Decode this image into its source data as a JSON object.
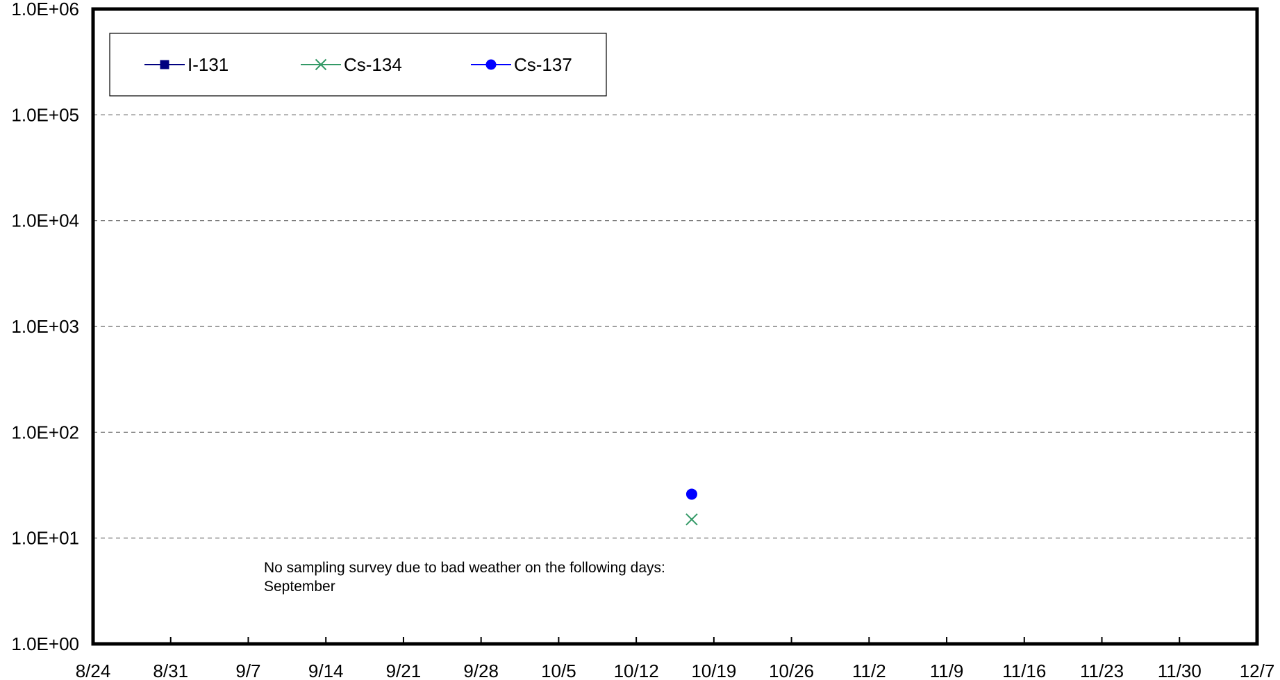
{
  "chart_data": {
    "type": "scatter",
    "title": "",
    "xlabel": "",
    "ylabel": "",
    "x_axis": {
      "start": "8/24",
      "end": "12/7",
      "tick_interval_days": 7,
      "tick_labels": [
        "8/24",
        "8/31",
        "9/7",
        "9/14",
        "9/21",
        "9/28",
        "10/5",
        "10/12",
        "10/19",
        "10/26",
        "11/2",
        "11/9",
        "11/16",
        "11/23",
        "11/30",
        "12/7"
      ]
    },
    "y_axis": {
      "scale": "log",
      "ylim": [
        1,
        1000000
      ],
      "tick_values": [
        1,
        10,
        100,
        1000,
        10000,
        100000,
        1000000
      ],
      "tick_labels": [
        "1.0E+00",
        "1.0E+01",
        "1.0E+02",
        "1.0E+03",
        "1.0E+04",
        "1.0E+05",
        "1.0E+06"
      ]
    },
    "grid": "horizontal-dashed",
    "legend_position": "top-left",
    "series": [
      {
        "name": "I-131",
        "color": "#000080",
        "marker": "square",
        "line": true,
        "points": []
      },
      {
        "name": "Cs-134",
        "color": "#339966",
        "marker": "x",
        "line": true,
        "points": [
          {
            "x": "10/17",
            "y": 15
          }
        ]
      },
      {
        "name": "Cs-137",
        "color": "#0000ff",
        "marker": "circle",
        "line": true,
        "points": [
          {
            "x": "10/17",
            "y": 26
          }
        ]
      }
    ],
    "annotations": [
      "No sampling survey due to bad weather on the following days:",
      "September"
    ]
  }
}
